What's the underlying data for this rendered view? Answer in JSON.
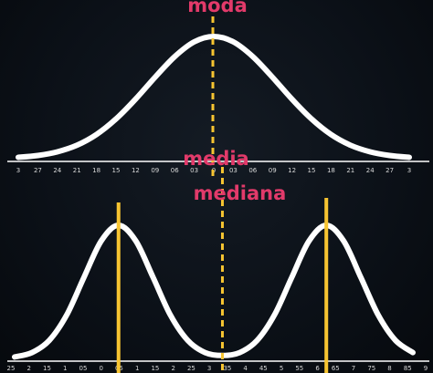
{
  "colors": {
    "curve": "#ffffff",
    "marker": "#f7c431",
    "annotation": "#e23a6a",
    "background": "#0b1017"
  },
  "chart_data": [
    {
      "type": "line",
      "title": "",
      "xlabel": "",
      "ylabel": "",
      "xlim": [
        -3.15,
        3.15
      ],
      "grid": false,
      "tick_labels": [
        "3",
        "27",
        "24",
        "21",
        "18",
        "15",
        "12",
        "09",
        "06",
        "03",
        "0",
        "03",
        "06",
        "09",
        "12",
        "15",
        "18",
        "21",
        "24",
        "27",
        "3"
      ],
      "series": [
        {
          "x": [
            -3,
            -2.7,
            -2.4,
            -2.1,
            -1.8,
            -1.5,
            -1.2,
            -0.9,
            -0.6,
            -0.3,
            0,
            0.3,
            0.6,
            0.9,
            1.2,
            1.5,
            1.8,
            2.1,
            2.4,
            2.7,
            3
          ],
          "y": [
            0.011,
            0.026,
            0.056,
            0.11,
            0.198,
            0.325,
            0.487,
            0.667,
            0.835,
            0.956,
            1.0,
            0.956,
            0.835,
            0.667,
            0.487,
            0.325,
            0.198,
            0.11,
            0.056,
            0.026,
            0.011
          ]
        }
      ],
      "annotations": [
        {
          "text": "moda",
          "x": 0
        }
      ],
      "marker_lines": [
        0
      ]
    },
    {
      "type": "line",
      "title": "",
      "xlabel": "",
      "ylabel": "",
      "xlim": [
        -3.4,
        8.7
      ],
      "grid": false,
      "tick_labels": [
        "25",
        "2",
        "15",
        "1",
        "05",
        "0",
        "05",
        "1",
        "15",
        "2",
        "25",
        "3",
        "35",
        "4",
        "45",
        "5",
        "55",
        "6",
        "65",
        "7",
        "75",
        "8",
        "85",
        "9"
      ],
      "series": [
        {
          "x": [
            -3,
            -2.5,
            -2,
            -1.5,
            -1,
            -0.5,
            0,
            0.5,
            1,
            1.5,
            2,
            2.5,
            3,
            3.5,
            4,
            4.5,
            5,
            5.5,
            6,
            6.5,
            7,
            7.5,
            8,
            8.5
          ],
          "y": [
            0.011,
            0.044,
            0.135,
            0.325,
            0.607,
            0.882,
            1.0,
            0.882,
            0.607,
            0.325,
            0.135,
            0.044,
            0.022,
            0.044,
            0.135,
            0.325,
            0.607,
            0.882,
            1.0,
            0.882,
            0.607,
            0.325,
            0.135,
            0.044
          ]
        }
      ],
      "annotations": [
        {
          "text": "media",
          "x": 3
        },
        {
          "text": "mediana",
          "x": 3
        }
      ],
      "marker_lines": [
        0,
        3,
        6
      ]
    }
  ]
}
